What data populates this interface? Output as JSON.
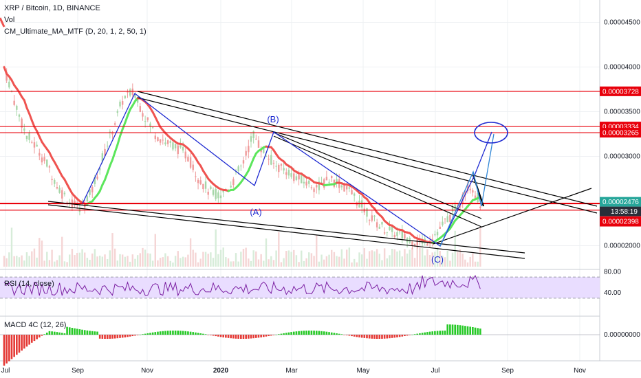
{
  "header": {
    "symbol_line": "XRP / Bitcoin, 1D, BINANCE",
    "indicator_vol": "Vol",
    "indicator_ma": "CM_Ultimate_MA_MTF (D, 20, 1, 2, 50, 1)"
  },
  "rsi_panel": {
    "label": "RSI (14, close)",
    "ticks": [
      "80.00",
      "40.00"
    ]
  },
  "macd_panel": {
    "label": "MACD 4C (12, 26)",
    "ticks": [
      "0.00000000"
    ]
  },
  "colors": {
    "ma_up": "#5ce65c",
    "ma_down": "#ef5350",
    "blue_lines": "#1e2ad1",
    "black_lines": "#000000",
    "red_levels": "#e8000b",
    "rsi_line": "#7b1fa2",
    "rsi_band": "#e9ddff",
    "dark_tag": "#2a2e39"
  },
  "chart_data": {
    "type": "candlestick",
    "title": "XRP / Bitcoin, 1D, BINANCE",
    "x_ticks": [
      "Jul",
      "Sep",
      "Nov",
      "2020",
      "Mar",
      "May",
      "Jul",
      "Sep",
      "Nov"
    ],
    "y_ticks": [
      "0.00004500",
      "0.00004000",
      "0.00003500",
      "0.00003000",
      "0.00002500",
      "0.00002000"
    ],
    "ylim": [
      1.75e-05,
      4.75e-05
    ],
    "horizontal_levels": [
      {
        "value": "0.00003728",
        "price": 3.728e-05
      },
      {
        "value": "0.00003334",
        "price": 3.334e-05
      },
      {
        "value": "0.00003265",
        "price": 3.265e-05
      },
      {
        "value": "0.00002476",
        "price": 2.476e-05
      },
      {
        "value": "0.00002469",
        "price": 2.469e-05
      },
      {
        "value": "0.00002398",
        "price": 2.398e-05
      }
    ],
    "countdown_tag": "13:58:19",
    "wave_labels": [
      "(A)",
      "(B)",
      "(C)"
    ],
    "price_path": [
      4e-05,
      3.6e-05,
      3.25e-05,
      3.1e-05,
      2.9e-05,
      2.65e-05,
      2.5e-05,
      2.42e-05,
      2.58e-05,
      2.95e-05,
      3.3e-05,
      3.65e-05,
      3.72e-05,
      3.45e-05,
      3.25e-05,
      3.15e-05,
      3.1e-05,
      3e-05,
      2.75e-05,
      2.6e-05,
      2.55e-05,
      2.7e-05,
      2.9e-05,
      3.25e-05,
      3.05e-05,
      2.9e-05,
      2.85e-05,
      2.76e-05,
      2.7e-05,
      2.65e-05,
      2.75e-05,
      2.7e-05,
      2.6e-05,
      2.45e-05,
      2.3e-05,
      2.2e-05,
      2.15e-05,
      2.1e-05,
      2.05e-05,
      2.05e-05,
      2.15e-05,
      2.3e-05,
      2.45e-05,
      2.7e-05,
      2.469e-05
    ]
  }
}
